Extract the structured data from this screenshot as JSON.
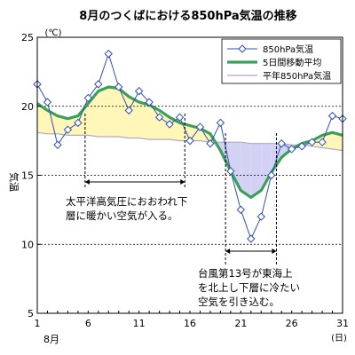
{
  "chart_data": {
    "type": "line",
    "title": "8月のつくばにおける850hPa気温の推移",
    "ylabel": "気温",
    "yunit": "(℃)",
    "xunit": "(日)",
    "xmonth": "8月",
    "ylim": [
      5,
      25
    ],
    "xlim": [
      1,
      31
    ],
    "yticks": [
      5,
      10,
      15,
      20,
      25
    ],
    "xticks": [
      1,
      6,
      11,
      16,
      21,
      26,
      31
    ],
    "grid": "y-dashed",
    "legend_position": "top-right",
    "x": [
      1,
      2,
      3,
      4,
      5,
      6,
      7,
      8,
      9,
      10,
      11,
      12,
      13,
      14,
      15,
      16,
      17,
      18,
      19,
      20,
      21,
      22,
      23,
      24,
      25,
      26,
      27,
      28,
      29,
      30,
      31
    ],
    "series": [
      {
        "name": "850hPa気温",
        "style": "marker-line",
        "color": "#2f4fb0",
        "values": [
          21.6,
          20.3,
          17.2,
          18.3,
          18.8,
          20.6,
          21.6,
          23.8,
          21.4,
          19.7,
          21.1,
          20.3,
          19.2,
          18.7,
          19.2,
          17.5,
          18.5,
          17.3,
          18.8,
          15.3,
          12.5,
          10.4,
          12.0,
          15.0,
          17.3,
          16.9,
          17.1,
          17.4,
          17.4,
          19.3,
          19.1
        ]
      },
      {
        "name": "5日間移動平均",
        "style": "thick-line",
        "color": "#3a9f5a",
        "values": [
          20.2,
          19.7,
          19.3,
          19.1,
          19.3,
          20.2,
          21.1,
          21.4,
          21.3,
          20.7,
          20.3,
          20.1,
          19.7,
          19.2,
          18.8,
          18.6,
          18.4,
          18.0,
          16.8,
          15.3,
          13.9,
          13.4,
          13.9,
          15.2,
          16.3,
          16.9,
          17.3,
          17.5,
          17.9,
          18.1,
          17.9
        ]
      },
      {
        "name": "平年850hPa気温",
        "style": "thin-line",
        "color": "#b0a8cc",
        "values": [
          18.1,
          18.0,
          18.0,
          17.9,
          17.9,
          17.9,
          17.8,
          17.8,
          17.8,
          17.7,
          17.7,
          17.6,
          17.6,
          17.6,
          17.5,
          17.5,
          17.5,
          17.4,
          17.4,
          17.4,
          17.4,
          17.3,
          17.3,
          17.3,
          17.3,
          17.2,
          17.2,
          17.1,
          17.0,
          16.9,
          16.8
        ]
      }
    ],
    "fills": {
      "above_normal_color": "#fff6b8",
      "below_normal_color": "#d4d2f4"
    },
    "annotations": [
      {
        "lines": [
          "太平洋高気圧におおわれ下",
          "層に暖かい空気が入る。"
        ],
        "from_day": 5.7,
        "to_day": 15.5
      },
      {
        "lines": [
          "台風第13号が東海上",
          "を北上し下層に冷たい",
          "空気を引き込む。"
        ],
        "from_day": 19.5,
        "to_day": 24.5
      }
    ]
  }
}
